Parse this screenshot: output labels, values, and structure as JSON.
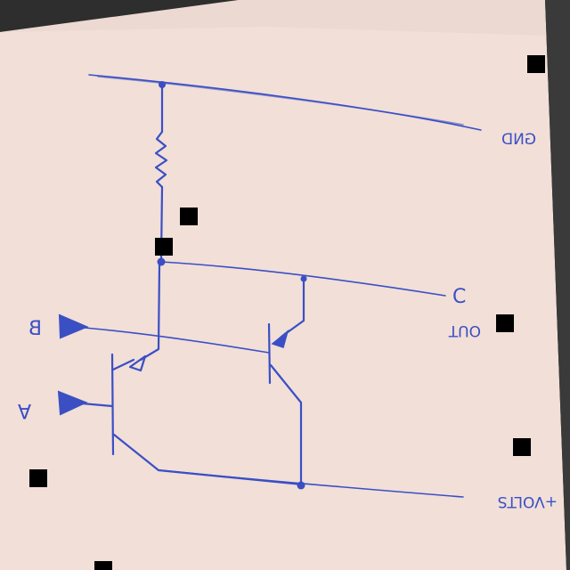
{
  "labels": {
    "gnd": "GND",
    "c": "C",
    "out": "OUT",
    "b": "B",
    "a": "A",
    "volts": "+VOLTS"
  },
  "colors": {
    "paper": "#f1dfd8",
    "ink": "#3b4fc4",
    "background": "#2b2b2b"
  }
}
